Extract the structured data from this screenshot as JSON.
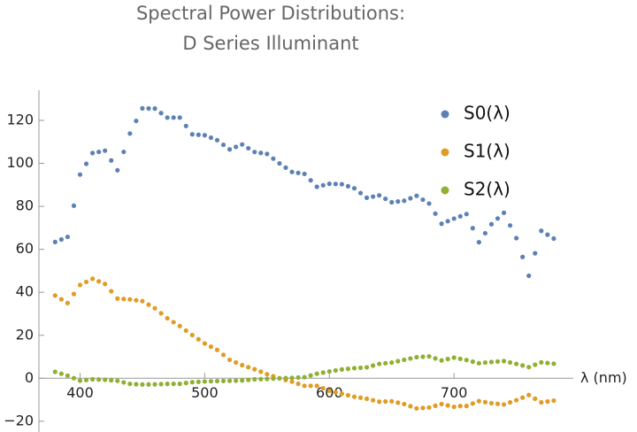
{
  "chart_data": {
    "type": "scatter",
    "title_lines": [
      "Spectral Power Distributions:",
      "D Series Illuminant"
    ],
    "x_label": "λ (nm)",
    "x": [
      380,
      385,
      390,
      395,
      400,
      405,
      410,
      415,
      420,
      425,
      430,
      435,
      440,
      445,
      450,
      455,
      460,
      465,
      470,
      475,
      480,
      485,
      490,
      495,
      500,
      505,
      510,
      515,
      520,
      525,
      530,
      535,
      540,
      545,
      550,
      555,
      560,
      565,
      570,
      575,
      580,
      585,
      590,
      595,
      600,
      605,
      610,
      615,
      620,
      625,
      630,
      635,
      640,
      645,
      650,
      655,
      660,
      665,
      670,
      675,
      680,
      685,
      690,
      695,
      700,
      705,
      710,
      715,
      720,
      725,
      730,
      735,
      740,
      745,
      750,
      755,
      760,
      765,
      770,
      775,
      780
    ],
    "series": [
      {
        "name": "S0(λ)",
        "color": "#5e81b5",
        "values": [
          63.4,
          64.6,
          65.8,
          80.3,
          94.8,
          99.8,
          104.8,
          105.35,
          105.9,
          101.35,
          96.8,
          105.35,
          113.9,
          119.75,
          125.6,
          125.55,
          125.5,
          123.4,
          121.3,
          121.3,
          121.3,
          117.4,
          113.5,
          113.3,
          113.1,
          111.95,
          110.8,
          108.65,
          106.5,
          107.65,
          108.8,
          107.05,
          105.3,
          104.85,
          104.4,
          102.2,
          100.0,
          98.0,
          96.0,
          95.55,
          95.1,
          92.1,
          89.1,
          89.8,
          90.5,
          90.4,
          90.3,
          89.35,
          88.4,
          86.2,
          84.0,
          84.55,
          85.1,
          83.5,
          81.9,
          82.25,
          82.6,
          83.75,
          84.9,
          83.1,
          81.3,
          76.6,
          71.9,
          73.1,
          74.3,
          75.35,
          76.4,
          69.85,
          63.3,
          67.5,
          71.7,
          74.35,
          77.0,
          71.1,
          65.2,
          56.45,
          47.7,
          58.15,
          68.6,
          66.8,
          65.0
        ]
      },
      {
        "name": "S1(λ)",
        "color": "#e19c24",
        "values": [
          38.5,
          36.75,
          35.0,
          39.2,
          43.4,
          44.85,
          46.3,
          45.1,
          43.9,
          40.5,
          37.1,
          36.9,
          36.7,
          36.3,
          35.9,
          34.25,
          32.6,
          30.25,
          27.9,
          26.1,
          24.3,
          22.2,
          20.1,
          18.15,
          16.2,
          14.7,
          13.2,
          10.9,
          8.6,
          7.35,
          6.1,
          5.15,
          4.2,
          3.05,
          1.9,
          0.95,
          0,
          -0.8,
          -1.6,
          -2.55,
          -3.5,
          -3.5,
          -3.5,
          -4.65,
          -5.8,
          -6.5,
          -7.2,
          -7.9,
          -8.6,
          -9.05,
          -9.5,
          -10.2,
          -10.9,
          -10.8,
          -10.7,
          -11.35,
          -12.0,
          -13.0,
          -14.0,
          -13.8,
          -13.6,
          -12.8,
          -12.0,
          -12.65,
          -13.3,
          -12.9,
          -12.9,
          -11.75,
          -10.6,
          -11.1,
          -11.6,
          -11.9,
          -12.2,
          -11.2,
          -10.2,
          -9.0,
          -7.8,
          -9.5,
          -11.2,
          -10.8,
          -10.4
        ]
      },
      {
        "name": "S2(λ)",
        "color": "#8fb032",
        "values": [
          3.0,
          2.1,
          1.2,
          0.05,
          -1.1,
          -0.8,
          -0.5,
          -0.6,
          -0.7,
          -0.95,
          -1.2,
          -1.9,
          -2.6,
          -2.75,
          -2.9,
          -2.85,
          -2.8,
          -2.7,
          -2.6,
          -2.6,
          -2.6,
          -2.2,
          -1.8,
          -1.65,
          -1.5,
          -1.4,
          -1.3,
          -1.25,
          -1.2,
          -1.1,
          -1.0,
          -0.75,
          -0.5,
          -0.4,
          -0.3,
          -0.15,
          0,
          0.1,
          0.2,
          0.35,
          0.5,
          1.3,
          2.1,
          2.65,
          3.2,
          3.65,
          4.1,
          4.4,
          4.7,
          4.9,
          5.1,
          5.9,
          6.7,
          7.0,
          7.3,
          7.95,
          8.6,
          9.2,
          9.8,
          10.0,
          10.2,
          9.25,
          8.3,
          8.95,
          9.6,
          9.05,
          8.5,
          7.75,
          7.0,
          7.3,
          7.6,
          7.8,
          8.0,
          7.35,
          6.7,
          5.95,
          5.2,
          6.3,
          7.4,
          7.1,
          6.8
        ]
      }
    ],
    "xlim": [
      367,
      790
    ],
    "ylim": [
      -25,
      134
    ],
    "xticks": [
      400,
      500,
      600,
      700
    ],
    "yticks": [
      {
        "value": -20,
        "label": "−20"
      },
      0,
      20,
      40,
      60,
      80,
      100,
      120
    ]
  }
}
